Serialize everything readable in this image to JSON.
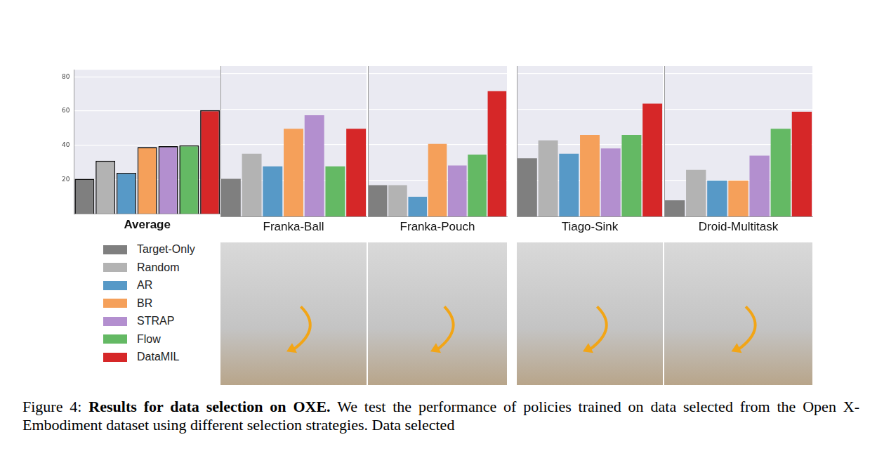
{
  "chart_data": [
    {
      "type": "bar",
      "title": "Average",
      "categories": [
        "Target-Only",
        "Random",
        "AR",
        "BR",
        "STRAP",
        "Flow",
        "DataMIL"
      ],
      "values": [
        20.5,
        31,
        24,
        39,
        39.5,
        40,
        60.5
      ],
      "colors": [
        "#7f7f7f",
        "#b3b3b3",
        "#5799c7",
        "#f5a05a",
        "#b38fcf",
        "#64b964",
        "#d62728"
      ],
      "ylim": [
        0,
        84
      ],
      "yticks": [
        20,
        40,
        60,
        80
      ],
      "grid": true,
      "tick_labels": "y",
      "legend": "bottom"
    },
    {
      "type": "bar",
      "title": "Franka-Ball",
      "categories": [
        "Target-Only",
        "Random",
        "AR",
        "BR",
        "STRAP",
        "Flow",
        "DataMIL"
      ],
      "values": [
        21,
        35,
        28,
        49,
        56.5,
        28,
        49
      ],
      "colors": [
        "#7f7f7f",
        "#b3b3b3",
        "#5799c7",
        "#f5a05a",
        "#b38fcf",
        "#64b964",
        "#d62728"
      ],
      "ylim": [
        0,
        84
      ],
      "yticks": [
        20,
        40,
        60,
        80
      ],
      "grid": true,
      "tick_labels": false
    },
    {
      "type": "bar",
      "title": "Franka-Pouch",
      "categories": [
        "Target-Only",
        "Random",
        "AR",
        "BR",
        "STRAP",
        "Flow",
        "DataMIL"
      ],
      "values": [
        17.5,
        17.5,
        11,
        40.5,
        28.5,
        34.5,
        70
      ],
      "colors": [
        "#7f7f7f",
        "#b3b3b3",
        "#5799c7",
        "#f5a05a",
        "#b38fcf",
        "#64b964",
        "#d62728"
      ],
      "ylim": [
        0,
        84
      ],
      "yticks": [
        20,
        40,
        60,
        80
      ],
      "grid": true,
      "tick_labels": false
    },
    {
      "type": "bar",
      "title": "Tiago-Sink",
      "categories": [
        "Target-Only",
        "Random",
        "AR",
        "BR",
        "STRAP",
        "Flow",
        "DataMIL"
      ],
      "values": [
        32.5,
        42.5,
        35,
        45.5,
        38,
        45.5,
        63
      ],
      "colors": [
        "#7f7f7f",
        "#b3b3b3",
        "#5799c7",
        "#f5a05a",
        "#b38fcf",
        "#64b964",
        "#d62728"
      ],
      "ylim": [
        0,
        84
      ],
      "yticks": [
        20,
        40,
        60,
        80
      ],
      "grid": true,
      "tick_labels": false
    },
    {
      "type": "bar",
      "title": "Droid-Multitask",
      "categories": [
        "Target-Only",
        "Random",
        "AR",
        "BR",
        "STRAP",
        "Flow",
        "DataMIL"
      ],
      "values": [
        9,
        26,
        20,
        20,
        34,
        49,
        58.5
      ],
      "colors": [
        "#7f7f7f",
        "#b3b3b3",
        "#5799c7",
        "#f5a05a",
        "#b38fcf",
        "#64b964",
        "#d62728"
      ],
      "ylim": [
        0,
        84
      ],
      "yticks": [
        20,
        40,
        60,
        80
      ],
      "grid": true,
      "tick_labels": false
    }
  ],
  "caption": {
    "label": "Figure 4:",
    "title": "Results for data selection on OXE.",
    "text": "We test the performance of policies trained on data selected from the Open X-Embodiment dataset using different selection strategies. Data selected"
  }
}
